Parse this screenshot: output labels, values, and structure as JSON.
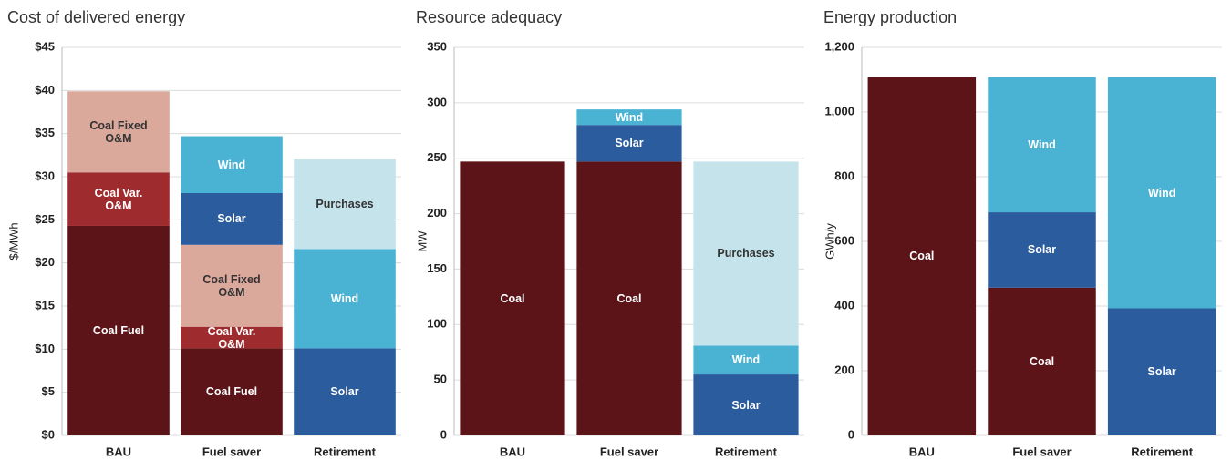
{
  "chart_data": [
    {
      "type": "bar",
      "stacked": true,
      "title": "Cost of delivered energy",
      "y_label": "$/MWh",
      "categories": [
        "BAU",
        "Fuel saver",
        "Retirement"
      ],
      "series": [
        {
          "name": "Coal Fuel",
          "color": "#5c1419",
          "values": [
            24.3,
            10.1,
            null
          ]
        },
        {
          "name": "Coal Var. O&M",
          "color": "#9e2b2e",
          "values": [
            6.2,
            2.5,
            null
          ]
        },
        {
          "name": "Coal Fixed O&M",
          "color": "#dba89c",
          "values": [
            9.4,
            9.5,
            null
          ]
        },
        {
          "name": "Solar",
          "color": "#2b5c9e",
          "values": [
            null,
            6.0,
            10.1
          ]
        },
        {
          "name": "Wind",
          "color": "#4ab3d4",
          "values": [
            null,
            6.6,
            11.5
          ]
        },
        {
          "name": "Purchases",
          "color": "#c4e3ea",
          "values": [
            null,
            null,
            10.4
          ]
        }
      ],
      "ylim": [
        0,
        45
      ],
      "yticks": [
        {
          "value": 0,
          "label": "$0"
        },
        {
          "value": 5,
          "label": "$5"
        },
        {
          "value": 10,
          "label": "$10"
        },
        {
          "value": 15,
          "label": "$15"
        },
        {
          "value": 20,
          "label": "$20"
        },
        {
          "value": 25,
          "label": "$25"
        },
        {
          "value": 30,
          "label": "$30"
        },
        {
          "value": 35,
          "label": "$35"
        },
        {
          "value": 40,
          "label": "$40"
        },
        {
          "value": 45,
          "label": "$45"
        }
      ],
      "grid": true
    },
    {
      "type": "bar",
      "stacked": true,
      "title": "Resource adequacy",
      "y_label": "MW",
      "categories": [
        "BAU",
        "Fuel saver",
        "Retirement"
      ],
      "series": [
        {
          "name": "Coal",
          "color": "#5c1419",
          "values": [
            247,
            247,
            null
          ]
        },
        {
          "name": "Solar",
          "color": "#2b5c9e",
          "values": [
            null,
            33,
            55
          ]
        },
        {
          "name": "Wind",
          "color": "#4ab3d4",
          "values": [
            null,
            14,
            26
          ]
        },
        {
          "name": "Purchases",
          "color": "#c4e3ea",
          "values": [
            null,
            null,
            166
          ]
        }
      ],
      "ylim": [
        0,
        350
      ],
      "yticks": [
        0,
        50,
        100,
        150,
        200,
        250,
        300,
        350
      ],
      "grid": true
    },
    {
      "type": "bar",
      "stacked": true,
      "title": "Energy production",
      "y_label": "GWh/y",
      "categories": [
        "BAU",
        "Fuel saver",
        "Retirement"
      ],
      "series": [
        {
          "name": "Coal",
          "color": "#5c1419",
          "values": [
            1108,
            457,
            null
          ]
        },
        {
          "name": "Solar",
          "color": "#2b5c9e",
          "values": [
            null,
            233,
            393
          ]
        },
        {
          "name": "Wind",
          "color": "#4ab3d4",
          "values": [
            null,
            418,
            715
          ]
        }
      ],
      "ylim": [
        0,
        1200
      ],
      "yticks": [
        0,
        200,
        400,
        600,
        800,
        {
          "value": 1000,
          "label": "1,000"
        },
        {
          "value": 1200,
          "label": "1,200"
        }
      ],
      "grid": true
    }
  ]
}
